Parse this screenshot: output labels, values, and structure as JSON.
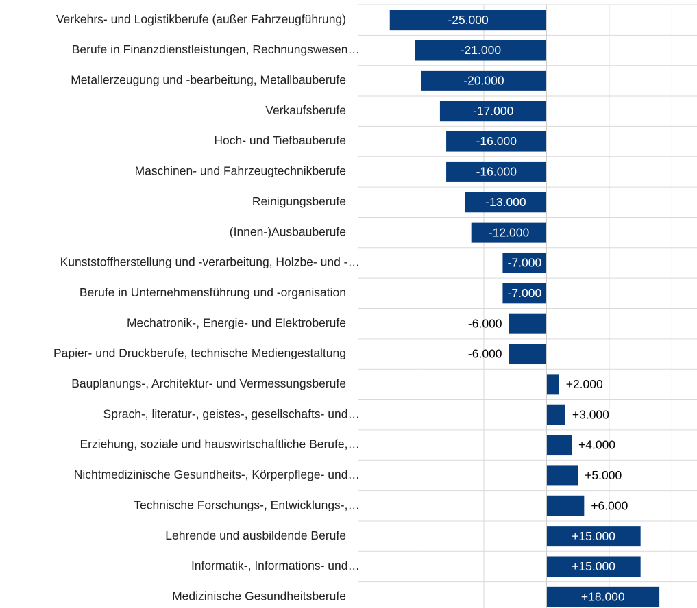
{
  "chart_data": {
    "type": "barh",
    "categories": [
      "Verkehrs- und Logistikberufe (außer Fahrzeugführung)",
      "Berufe in Finanzdienstleistungen, Rechnungswesen…",
      "Metallerzeugung und -bearbeitung, Metallbauberufe",
      "Verkaufsberufe",
      "Hoch- und Tiefbauberufe",
      "Maschinen- und Fahrzeugtechnikberufe",
      "Reinigungsberufe",
      "(Innen-)Ausbauberufe",
      "Kunststoffherstellung und -verarbeitung, Holzbe- und -…",
      "Berufe in Unternehmensführung und -organisation",
      "Mechatronik-, Energie- und Elektroberufe",
      "Papier- und Druckberufe, technische Mediengestaltung",
      "Bauplanungs-, Architektur- und Vermessungsberufe",
      "Sprach-, literatur-, geistes-, gesellschafts- und…",
      "Erziehung, soziale und hauswirtschaftliche Berufe,…",
      "Nichtmedizinische Gesundheits-, Körperpflege- und…",
      "Technische Forschungs-, Entwicklungs-,…",
      "Lehrende und ausbildende Berufe",
      "Informatik-, Informations- und…",
      "Medizinische Gesundheitsberufe"
    ],
    "values": [
      -25000,
      -21000,
      -20000,
      -17000,
      -16000,
      -16000,
      -13000,
      -12000,
      -7000,
      -7000,
      -6000,
      -6000,
      2000,
      3000,
      4000,
      5000,
      6000,
      15000,
      15000,
      18000
    ],
    "value_labels": [
      "-25.000",
      "-21.000",
      "-20.000",
      "-17.000",
      "-16.000",
      "-16.000",
      "-13.000",
      "-12.000",
      "-7.000",
      "-7.000",
      "-6.000",
      "-6.000",
      "+2.000",
      "+3.000",
      "+4.000",
      "+5.000",
      "+6.000",
      "+15.000",
      "+15.000",
      "+18.000"
    ],
    "color": "#073d7c",
    "xlim": [
      -30000,
      24000
    ],
    "xticks": [
      -20000,
      -10000,
      0,
      10000,
      20000
    ],
    "grid": true
  }
}
